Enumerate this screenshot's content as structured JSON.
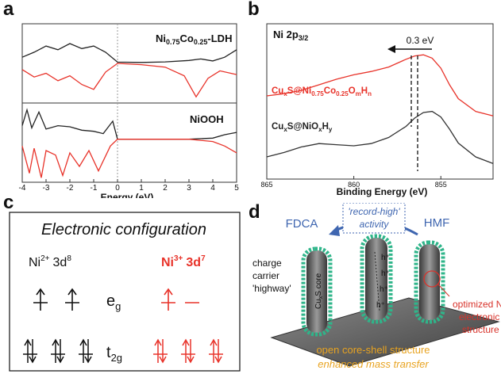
{
  "panels": {
    "a": {
      "label": "a"
    },
    "b": {
      "label": "b"
    },
    "c": {
      "label": "c"
    },
    "d": {
      "label": "d"
    }
  },
  "chart_data": [
    {
      "panel": "a-top",
      "type": "line",
      "title": "Ni0.75Co0.25-LDH",
      "xlabel": "Energy (eV)",
      "ylabel": "",
      "xlim": [
        -4,
        5
      ],
      "xticks": [
        "-4",
        "-3",
        "-2",
        "-1",
        "0",
        "1",
        "2",
        "3",
        "4",
        "5"
      ],
      "series": [
        {
          "color": "#222222",
          "x": [
            -4,
            -3.5,
            -3,
            -2.5,
            -2,
            -1.5,
            -1,
            -0.5,
            0,
            1,
            2,
            3,
            3.5,
            4,
            4.5,
            5
          ],
          "values": [
            0.25,
            0.45,
            0.7,
            0.55,
            0.8,
            0.6,
            0.7,
            0.45,
            0.05,
            0.04,
            0.06,
            0.12,
            0.18,
            0.1,
            0.25,
            0.55
          ]
        },
        {
          "color": "#e8332a",
          "x": [
            -4,
            -3.5,
            -3,
            -2.5,
            -2,
            -1.5,
            -1,
            -0.5,
            0,
            1,
            2,
            2.8,
            3.3,
            3.8,
            4.3,
            5
          ],
          "values": [
            -0.25,
            -0.55,
            -0.4,
            -0.7,
            -0.5,
            -0.85,
            -1.05,
            -0.35,
            0,
            -0.05,
            -0.15,
            -0.5,
            -1.35,
            -0.6,
            -0.3,
            -0.45
          ]
        }
      ]
    },
    {
      "panel": "a-bottom",
      "type": "line",
      "title": "NiOOH",
      "xlabel": "Energy (eV)",
      "ylabel": "",
      "xlim": [
        -4,
        5
      ],
      "series": [
        {
          "color": "#222222",
          "x": [
            -4,
            -3.8,
            -3.6,
            -3.3,
            -3,
            -2.5,
            -2,
            -1.5,
            -1,
            -0.6,
            -0.2,
            0,
            1,
            2,
            3,
            4,
            4.5,
            5
          ],
          "values": [
            0.6,
            1.3,
            0.5,
            1.2,
            0.45,
            0.6,
            0.55,
            0.4,
            0.35,
            0.25,
            0.8,
            0.0,
            0.0,
            0.0,
            0.0,
            0.05,
            0.2,
            0.3
          ]
        },
        {
          "color": "#e8332a",
          "x": [
            -4,
            -3.7,
            -3.5,
            -3.2,
            -3,
            -2.6,
            -2.3,
            -2,
            -1.6,
            -1.2,
            -0.8,
            -0.3,
            0,
            1,
            2,
            3,
            4,
            4.5,
            5
          ],
          "values": [
            -0.3,
            -1.5,
            -0.4,
            -1.7,
            -0.5,
            -0.7,
            -1.6,
            -0.6,
            -1.2,
            -0.5,
            -1.4,
            -0.3,
            0.0,
            0.0,
            0.0,
            0.0,
            -0.1,
            -0.3,
            -0.6
          ]
        }
      ]
    },
    {
      "panel": "b",
      "type": "line",
      "title": "Ni 2p3/2",
      "xlabel": "Binding Energy (eV)",
      "ylabel": "",
      "xlim": [
        865,
        852
      ],
      "xticks": [
        "865",
        "860",
        "855"
      ],
      "annotations": [
        "0.3 eV"
      ],
      "series": [
        {
          "name": "CuxS@Ni0.75Co0.25OmHn",
          "color": "#e8332a",
          "x": [
            865,
            864,
            863,
            862,
            861,
            860,
            859,
            858,
            857,
            856.5,
            856,
            855.5,
            855,
            854.5,
            854,
            853,
            852
          ],
          "values": [
            1.3,
            1.34,
            1.4,
            1.5,
            1.6,
            1.68,
            1.74,
            1.82,
            1.96,
            2.02,
            2.04,
            1.98,
            1.8,
            1.5,
            1.25,
            1.02,
            0.94
          ]
        },
        {
          "name": "CuxS@NiOxHy",
          "color": "#333333",
          "x": [
            865,
            864,
            863,
            862,
            861,
            860,
            859,
            858,
            857,
            856.5,
            856,
            855.5,
            855,
            854.5,
            854,
            853,
            852
          ],
          "values": [
            0.2,
            0.28,
            0.38,
            0.44,
            0.42,
            0.4,
            0.44,
            0.55,
            0.75,
            0.9,
            1.0,
            1.02,
            0.92,
            0.7,
            0.45,
            0.2,
            0.08
          ]
        }
      ]
    }
  ],
  "b_labels": {
    "title_main": "Ni 2p",
    "title_sub": "3/2",
    "shift": "0.3 eV",
    "red": {
      "a": "Cu",
      "b": "x",
      "c": "S@Ni",
      "d": "0.75",
      "e": "Co",
      "f": "0.25",
      "g": "O",
      "h": "m",
      "i": "H",
      "j": "n"
    },
    "black": {
      "a": "Cu",
      "b": "x",
      "c": "S@NiO",
      "d": "x",
      "e": "H",
      "f": "y"
    }
  },
  "a_labels": {
    "ldh_main": "Ni",
    "ldh_s1": "0.75",
    "ldh_co": "Co",
    "ldh_s2": "0.25",
    "ldh_end": "-LDH",
    "niooh": "NiOOH"
  },
  "panel_c": {
    "title": "Electronic configuration",
    "ni2": "Ni",
    "ni2_sup": "2+",
    "ni2_cfg": "3d",
    "ni2_cfg_sup": "8",
    "ni3": "Ni",
    "ni3_sup": "3+",
    "ni3_cfg": "3d",
    "ni3_cfg_sup": "7",
    "eg": "e",
    "eg_sub": "g",
    "t2g": "t",
    "t2g_sub": "2g",
    "colors": {
      "black": "#111111",
      "red": "#e8332a"
    }
  },
  "panel_d": {
    "fdca": "FDCA",
    "hmf": "HMF",
    "activity_1": "'record-high'",
    "activity_2": "activity",
    "charge_1": "charge",
    "charge_2": "carrier",
    "charge_3": "'highway'",
    "core": "Cu",
    "core_sub": "x",
    "core_end": "S core",
    "opt_1": "optimized Ni",
    "opt_2": "electronic",
    "opt_3": "structure",
    "bottom_1": "open core-shell structure",
    "bottom_2": "enhanced mass transfer",
    "hplus": "h⁺",
    "colors": {
      "blue": "#3f66b0",
      "red": "#d8322a",
      "orange": "#e8a320",
      "green": "#2fb58a"
    }
  }
}
